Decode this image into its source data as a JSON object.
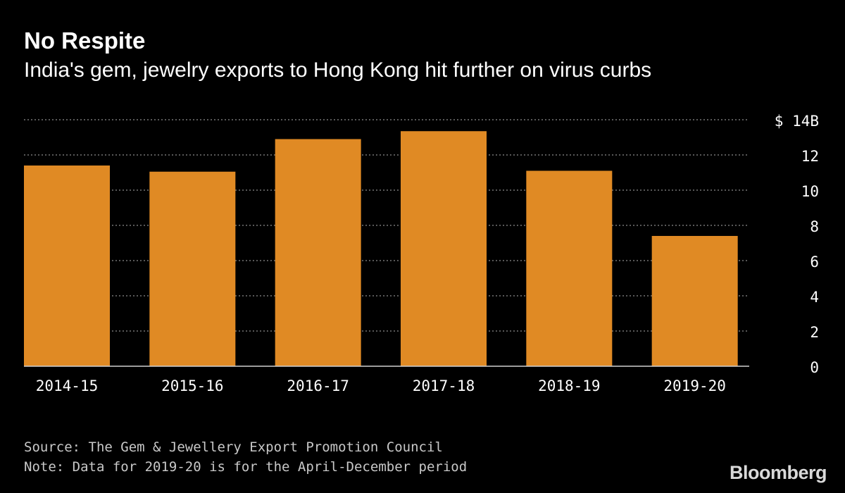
{
  "header": {
    "title": "No Respite",
    "subtitle": "India's gem, jewelry exports to Hong Kong hit further on virus curbs"
  },
  "footer": {
    "source": "Source: The Gem & Jewellery Export Promotion Council",
    "note": "Note: Data for 2019-20 is for the April-December period",
    "brand": "Bloomberg"
  },
  "colors": {
    "bar": "#E08A24",
    "background": "#000000",
    "gridline": "#8c8c8c",
    "text": "#ffffff"
  },
  "chart_data": {
    "type": "bar",
    "title": "No Respite",
    "subtitle": "India's gem, jewelry exports to Hong Kong hit further on virus curbs",
    "categories": [
      "2014-15",
      "2015-16",
      "2016-17",
      "2017-18",
      "2018-19",
      "2019-20"
    ],
    "values": [
      11.4,
      11.05,
      12.9,
      13.35,
      11.1,
      7.4
    ],
    "ylim": [
      0,
      14
    ],
    "yticks": [
      0,
      2,
      4,
      6,
      8,
      10,
      12,
      14
    ],
    "ytick_labels": [
      "0",
      "2",
      "4",
      "6",
      "8",
      "10",
      "12",
      "$ 14B"
    ],
    "xlabel": "",
    "ylabel": "",
    "grid": true,
    "axis_position": "right"
  }
}
